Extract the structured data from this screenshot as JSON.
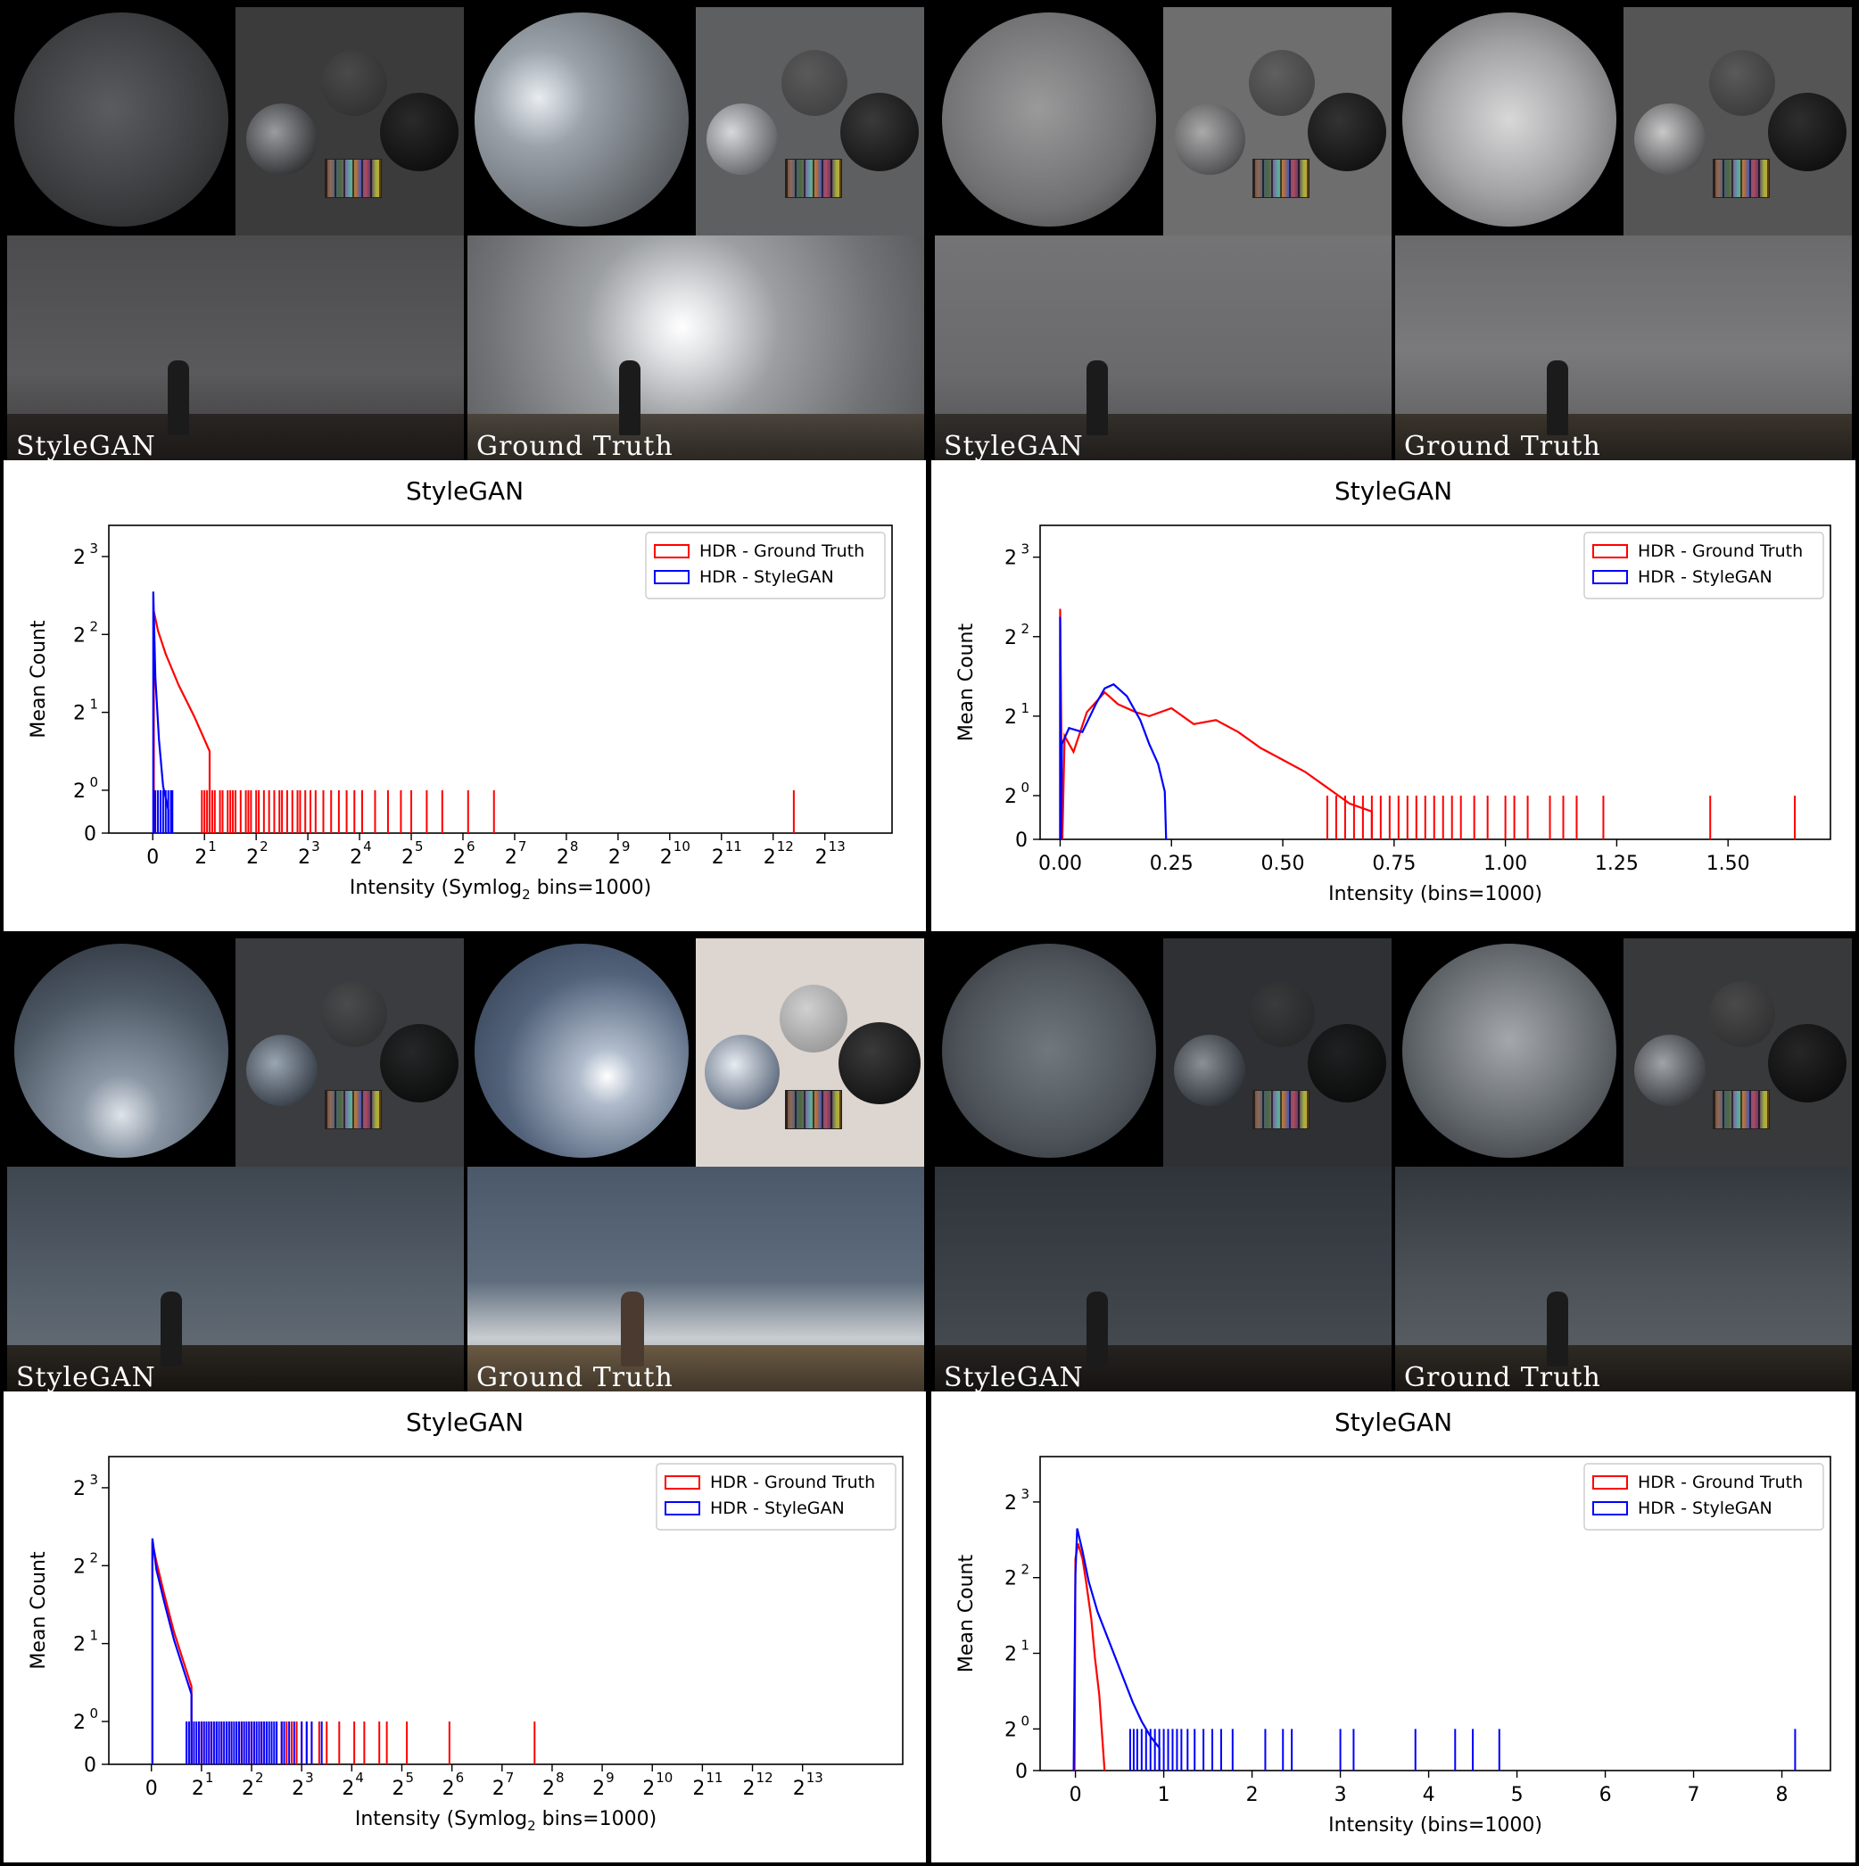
{
  "panels": [
    {
      "images": {
        "left_label": "StyleGAN",
        "right_label": "Ground Truth"
      },
      "chart_data": {
        "type": "histogram",
        "title": "StyleGAN",
        "xlabel": "Intensity (Symlog",
        "xlabel_sub": "2",
        "xlabel_tail": " bins=1000)",
        "ylabel": "Mean Count",
        "xscale": "symlog2",
        "yscale": "symlog2",
        "legend": [
          "HDR - Ground Truth",
          "HDR - StyleGAN"
        ],
        "legend_position": "top-right",
        "x_ticks": [
          "0",
          "1",
          "2",
          "3",
          "4",
          "5",
          "6",
          "7",
          "8",
          "9",
          "10",
          "11",
          "12",
          "13"
        ],
        "y_ticks": [
          "0",
          "0",
          "1",
          "2",
          "3"
        ],
        "xmax_exp": 13.3,
        "ymax_exp": 3.0,
        "series": [
          {
            "name": "HDR - Ground Truth",
            "color": "#ff0000",
            "peak": [
              [
                0.02,
                2.85
              ],
              [
                0.1,
                2.6
              ],
              [
                0.25,
                2.3
              ],
              [
                0.5,
                1.9
              ],
              [
                0.8,
                1.5
              ],
              [
                1.1,
                1.05
              ]
            ],
            "spikes": [
              0.95,
              1.0,
              1.05,
              1.1,
              1.15,
              1.2,
              1.3,
              1.35,
              1.45,
              1.5,
              1.55,
              1.6,
              1.7,
              1.8,
              1.85,
              1.9,
              2.0,
              2.05,
              2.15,
              2.25,
              2.35,
              2.45,
              2.5,
              2.6,
              2.7,
              2.8,
              2.85,
              2.95,
              3.05,
              3.15,
              3.3,
              3.45,
              3.6,
              3.75,
              3.9,
              4.05,
              4.3,
              4.55,
              4.8,
              5.0,
              5.3,
              5.6,
              6.1,
              6.6,
              12.4
            ]
          },
          {
            "name": "HDR - StyleGAN",
            "color": "#0000ff",
            "peak": [
              [
                0.01,
                3.1
              ],
              [
                0.05,
                2.0
              ],
              [
                0.12,
                1.2
              ],
              [
                0.2,
                0.6
              ],
              [
                0.3,
                0.3
              ]
            ],
            "spikes": [
              0.05,
              0.1,
              0.15,
              0.2,
              0.25,
              0.3,
              0.35,
              0.38
            ]
          }
        ]
      }
    },
    {
      "images": {
        "left_label": "StyleGAN",
        "right_label": "Ground Truth"
      },
      "chart_data": {
        "type": "histogram",
        "title": "StyleGAN",
        "xlabel": "Intensity (bins=1000)",
        "ylabel": "Mean Count",
        "xscale": "linear",
        "yscale": "symlog2",
        "legend": [
          "HDR - Ground Truth",
          "HDR - StyleGAN"
        ],
        "legend_position": "top-right",
        "x_ticks": [
          "0.00",
          "0.25",
          "0.50",
          "0.75",
          "1.00",
          "1.25",
          "1.50"
        ],
        "y_ticks": [
          "0",
          "0",
          "1",
          "2",
          "3"
        ],
        "xlim": [
          -0.045,
          1.73
        ],
        "ymax_exp": 3.0,
        "series": [
          {
            "name": "HDR - Ground Truth",
            "color": "#ff0000",
            "curve": [
              [
                0.0,
                2.9
              ],
              [
                0.005,
                0.0
              ],
              [
                0.01,
                1.3
              ],
              [
                0.03,
                1.1
              ],
              [
                0.06,
                1.6
              ],
              [
                0.1,
                1.85
              ],
              [
                0.13,
                1.7
              ],
              [
                0.17,
                1.6
              ],
              [
                0.2,
                1.55
              ],
              [
                0.25,
                1.65
              ],
              [
                0.3,
                1.45
              ],
              [
                0.35,
                1.5
              ],
              [
                0.4,
                1.35
              ],
              [
                0.45,
                1.15
              ],
              [
                0.5,
                1.0
              ],
              [
                0.55,
                0.85
              ],
              [
                0.6,
                0.65
              ],
              [
                0.65,
                0.45
              ],
              [
                0.7,
                0.35
              ]
            ],
            "spikes": [
              0.6,
              0.62,
              0.64,
              0.66,
              0.68,
              0.7,
              0.72,
              0.74,
              0.76,
              0.78,
              0.8,
              0.82,
              0.84,
              0.86,
              0.88,
              0.9,
              0.93,
              0.96,
              1.0,
              1.02,
              1.05,
              1.1,
              1.13,
              1.16,
              1.22,
              1.46,
              1.65
            ]
          },
          {
            "name": "HDR - StyleGAN",
            "color": "#0000ff",
            "curve": [
              [
                0.0,
                2.8
              ],
              [
                0.002,
                0.0
              ],
              [
                0.004,
                1.2
              ],
              [
                0.02,
                1.4
              ],
              [
                0.05,
                1.35
              ],
              [
                0.08,
                1.7
              ],
              [
                0.1,
                1.9
              ],
              [
                0.12,
                1.95
              ],
              [
                0.15,
                1.8
              ],
              [
                0.18,
                1.5
              ],
              [
                0.2,
                1.2
              ],
              [
                0.22,
                0.95
              ],
              [
                0.235,
                0.6
              ],
              [
                0.238,
                0.0
              ]
            ],
            "spikes": []
          }
        ]
      }
    },
    {
      "images": {
        "left_label": "StyleGAN",
        "right_label": "Ground Truth"
      },
      "chart_data": {
        "type": "histogram",
        "title": "StyleGAN",
        "xlabel": "Intensity (Symlog",
        "xlabel_sub": "2",
        "xlabel_tail": " bins=1000)",
        "ylabel": "Mean Count",
        "xscale": "symlog2",
        "yscale": "symlog2",
        "legend": [
          "HDR - Ground Truth",
          "HDR - StyleGAN"
        ],
        "legend_position": "top-right",
        "x_ticks": [
          "0",
          "1",
          "2",
          "3",
          "4",
          "5",
          "6",
          "7",
          "8",
          "9",
          "10",
          "11",
          "12",
          "13"
        ],
        "y_ticks": [
          "0",
          "0",
          "1",
          "2",
          "3"
        ],
        "xmax_exp": 14.0,
        "ymax_exp": 3.0,
        "series": [
          {
            "name": "HDR - Ground Truth",
            "color": "#ff0000",
            "peak": [
              [
                0.02,
                2.85
              ],
              [
                0.1,
                2.6
              ],
              [
                0.25,
                2.2
              ],
              [
                0.45,
                1.7
              ],
              [
                0.7,
                1.2
              ],
              [
                0.8,
                1.0
              ]
            ],
            "spikes": [
              0.75,
              0.8,
              0.85,
              0.95,
              1.0,
              1.05,
              1.15,
              1.2,
              1.3,
              1.4,
              1.5,
              1.55,
              1.6,
              1.7,
              1.75,
              1.8,
              1.85,
              1.95,
              2.05,
              2.15,
              2.2,
              2.3,
              2.4,
              2.5,
              2.6,
              2.7,
              2.8,
              2.9,
              3.0,
              3.1,
              3.2,
              3.35,
              3.5,
              3.75,
              4.05,
              4.25,
              4.55,
              4.7,
              5.1,
              5.95,
              7.65
            ]
          },
          {
            "name": "HDR - StyleGAN",
            "color": "#0000ff",
            "peak": [
              [
                0.02,
                2.9
              ],
              [
                0.1,
                2.5
              ],
              [
                0.25,
                2.1
              ],
              [
                0.45,
                1.6
              ],
              [
                0.7,
                1.1
              ],
              [
                0.8,
                0.9
              ]
            ],
            "spikes": [
              0.7,
              0.75,
              0.8,
              0.85,
              0.9,
              0.95,
              1.0,
              1.05,
              1.1,
              1.15,
              1.2,
              1.25,
              1.3,
              1.35,
              1.4,
              1.45,
              1.5,
              1.55,
              1.6,
              1.65,
              1.7,
              1.75,
              1.8,
              1.85,
              1.9,
              1.95,
              2.0,
              2.05,
              2.1,
              2.15,
              2.2,
              2.25,
              2.3,
              2.35,
              2.4,
              2.45,
              2.5,
              2.6,
              2.65,
              2.75,
              2.85,
              3.0,
              3.1,
              3.2,
              3.4
            ]
          }
        ]
      }
    },
    {
      "images": {
        "left_label": "StyleGAN",
        "right_label": "Ground Truth"
      },
      "chart_data": {
        "type": "histogram",
        "title": "StyleGAN",
        "xlabel": "Intensity (bins=1000)",
        "ylabel": "Mean Count",
        "xscale": "linear",
        "yscale": "symlog2",
        "legend": [
          "HDR - Ground Truth",
          "HDR - StyleGAN"
        ],
        "legend_position": "top-right",
        "x_ticks": [
          "0",
          "1",
          "2",
          "3",
          "4",
          "5",
          "6",
          "7",
          "8"
        ],
        "y_ticks": [
          "0",
          "0",
          "1",
          "2",
          "3"
        ],
        "xlim": [
          -0.4,
          8.55
        ],
        "ymax_exp": 3.2,
        "series": [
          {
            "name": "HDR - Ground Truth",
            "color": "#ff0000",
            "curve": [
              [
                -0.01,
                0.0
              ],
              [
                0.0,
                2.8
              ],
              [
                0.03,
                3.0
              ],
              [
                0.08,
                2.8
              ],
              [
                0.12,
                2.5
              ],
              [
                0.18,
                2.0
              ],
              [
                0.22,
                1.5
              ],
              [
                0.27,
                1.0
              ],
              [
                0.3,
                0.5
              ],
              [
                0.33,
                0.0
              ]
            ],
            "spikes": []
          },
          {
            "name": "HDR - StyleGAN",
            "color": "#0000ff",
            "curve": [
              [
                -0.02,
                0.0
              ],
              [
                0.0,
                2.6
              ],
              [
                0.02,
                3.2
              ],
              [
                0.08,
                2.9
              ],
              [
                0.15,
                2.5
              ],
              [
                0.25,
                2.1
              ],
              [
                0.35,
                1.8
              ],
              [
                0.45,
                1.5
              ],
              [
                0.55,
                1.2
              ],
              [
                0.65,
                0.9
              ],
              [
                0.75,
                0.65
              ],
              [
                0.85,
                0.45
              ],
              [
                0.95,
                0.3
              ]
            ],
            "spikes": [
              0.62,
              0.66,
              0.7,
              0.75,
              0.8,
              0.85,
              0.9,
              0.95,
              1.0,
              1.05,
              1.1,
              1.15,
              1.2,
              1.27,
              1.35,
              1.45,
              1.55,
              1.65,
              1.78,
              2.15,
              2.35,
              2.45,
              3.0,
              3.15,
              3.85,
              4.3,
              4.5,
              4.8,
              8.15
            ]
          }
        ]
      }
    }
  ]
}
